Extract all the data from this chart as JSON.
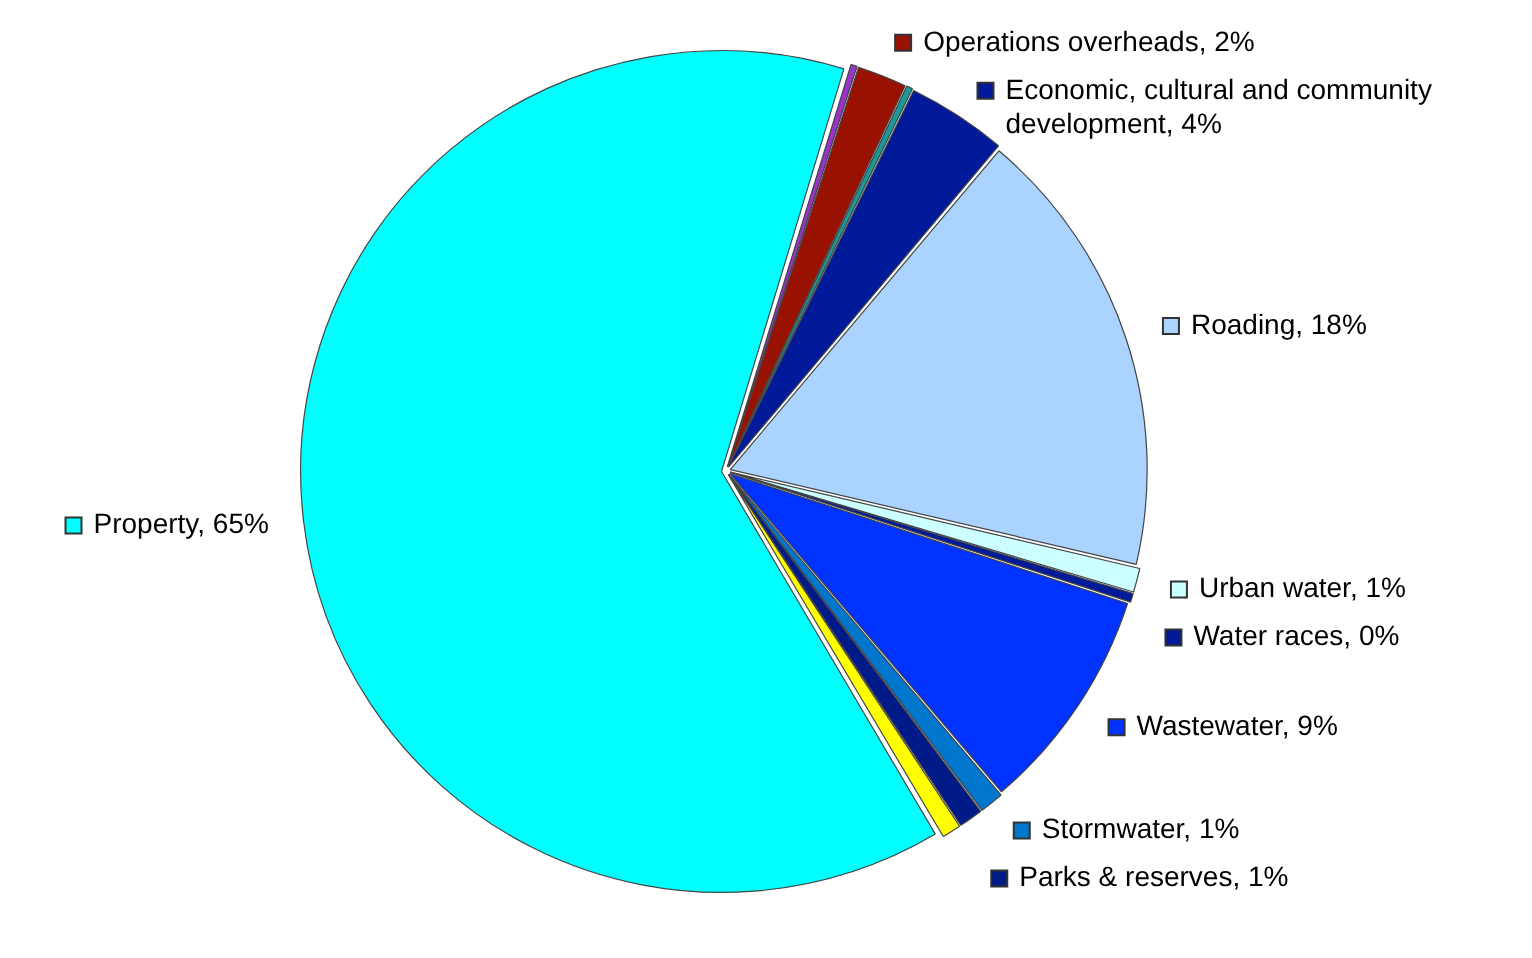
{
  "chart_data": {
    "type": "pie",
    "categories": [
      null,
      "Operations overheads",
      null,
      "Economic, cultural and community development",
      "Roading",
      "Urban water",
      "Water races",
      "Wastewater",
      "Stormwater",
      "Parks & reserves",
      null,
      "Property"
    ],
    "values": [
      0.3,
      2,
      0.3,
      4,
      18,
      1,
      0.4,
      9,
      1,
      1,
      0.8,
      65
    ],
    "value_labels": [
      null,
      "2%",
      null,
      "4%",
      "18%",
      "1%",
      "0%",
      "9%",
      "1%",
      "1%",
      null,
      "65%"
    ],
    "colors": [
      "#9933cc",
      "#991100",
      "#1a9999",
      "#001a99",
      "#aad4ff",
      "#ccffff",
      "#001a99",
      "#0033ff",
      "#0077cc",
      "#001a88",
      "#ffff00",
      "#00ffff"
    ],
    "legend": "right"
  }
}
